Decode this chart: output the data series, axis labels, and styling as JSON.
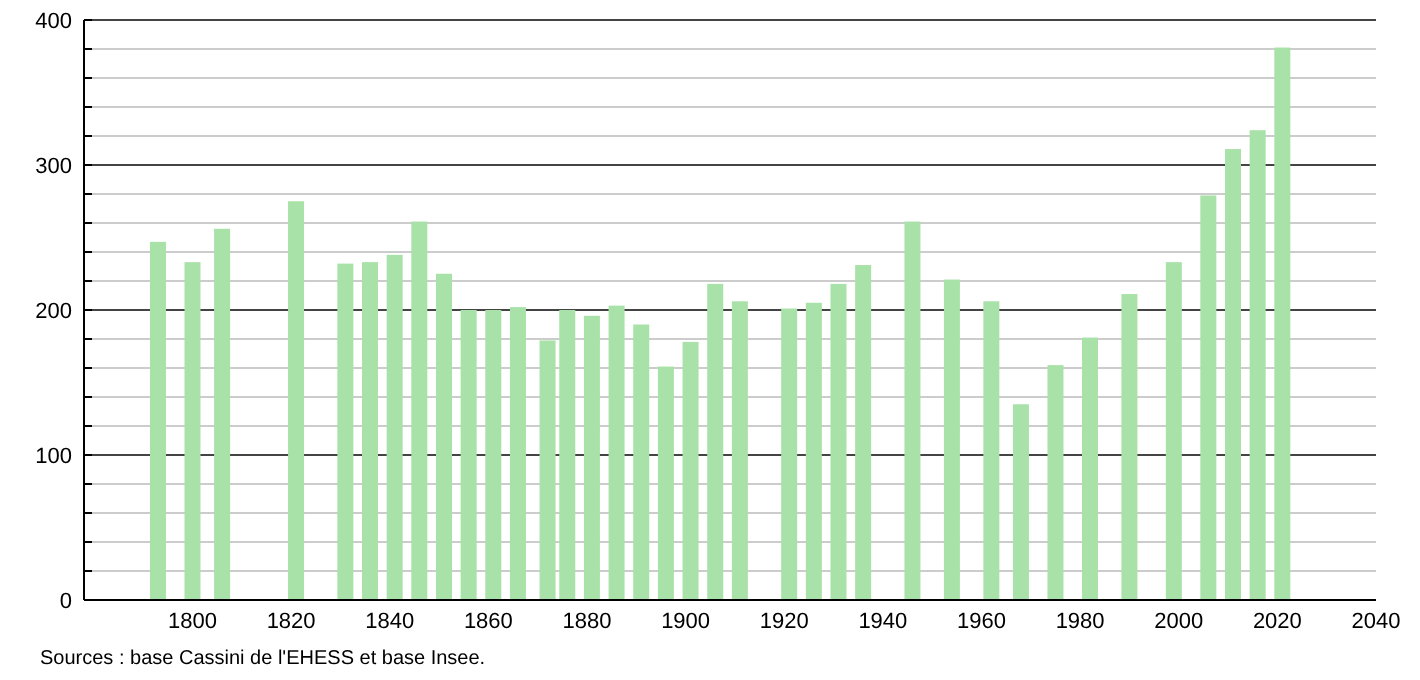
{
  "chart_data": {
    "type": "bar",
    "x": [
      1793,
      1800,
      1806,
      1821,
      1831,
      1836,
      1841,
      1846,
      1851,
      1856,
      1861,
      1866,
      1872,
      1876,
      1881,
      1886,
      1891,
      1896,
      1901,
      1906,
      1911,
      1921,
      1926,
      1931,
      1936,
      1946,
      1954,
      1962,
      1968,
      1975,
      1982,
      1990,
      1999,
      2006,
      2011,
      2016,
      2021
    ],
    "values": [
      247,
      233,
      256,
      275,
      232,
      233,
      238,
      261,
      225,
      200,
      200,
      202,
      179,
      200,
      196,
      203,
      190,
      161,
      178,
      218,
      206,
      201,
      205,
      218,
      231,
      261,
      221,
      206,
      135,
      162,
      181,
      211,
      233,
      279,
      311,
      324,
      381
    ],
    "color": "#a8e2a8",
    "xlim": [
      1778,
      2040
    ],
    "xticks": [
      1800,
      1820,
      1840,
      1860,
      1880,
      1900,
      1920,
      1940,
      1960,
      1980,
      2000,
      2020,
      2040
    ],
    "ylim": [
      0,
      400
    ],
    "yticks": [
      0,
      {
        "value": 20,
        "label": null
      },
      {
        "value": 40,
        "label": null
      },
      {
        "value": 60,
        "label": null
      },
      {
        "value": 80,
        "label": null
      },
      100,
      {
        "value": 120,
        "label": null
      },
      {
        "value": 140,
        "label": null
      },
      {
        "value": 160,
        "label": null
      },
      {
        "value": 180,
        "label": null
      },
      200,
      {
        "value": 220,
        "label": null
      },
      {
        "value": 240,
        "label": null
      },
      {
        "value": 260,
        "label": null
      },
      {
        "value": 280,
        "label": null
      },
      300,
      {
        "value": 320,
        "label": null
      },
      {
        "value": 340,
        "label": null
      },
      {
        "value": 360,
        "label": null
      },
      {
        "value": 380,
        "label": null
      },
      400
    ],
    "grid": "y",
    "annotations": [
      "Sources : base Cassini de l'EHESS et base Insee."
    ]
  }
}
